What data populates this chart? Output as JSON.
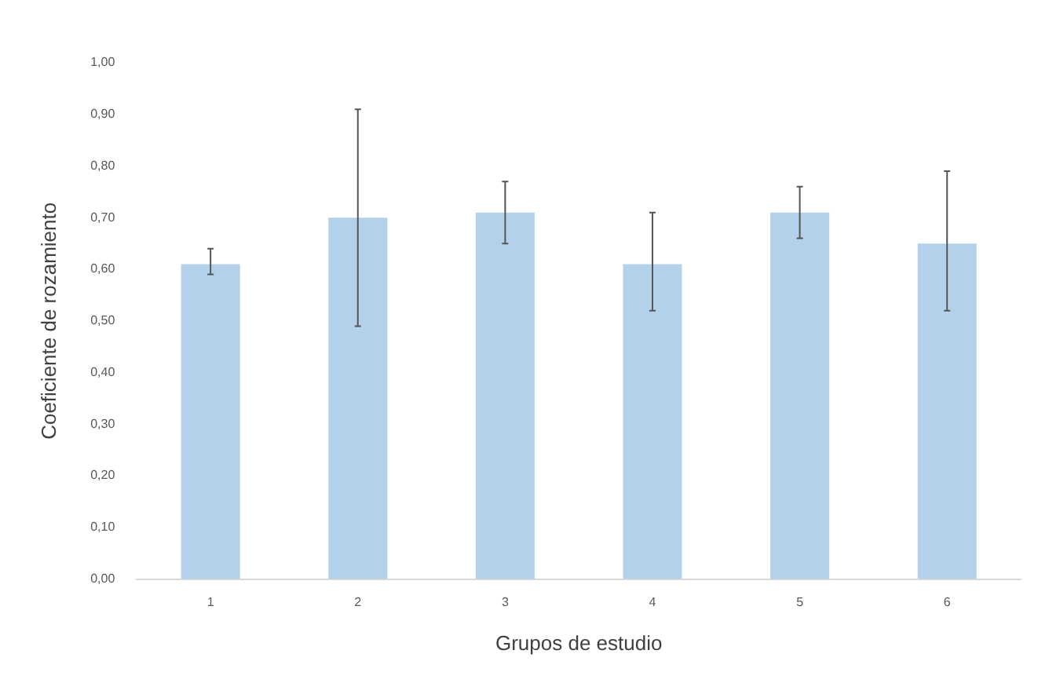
{
  "chart_data": {
    "type": "bar",
    "xlabel": "Grupos de estudio",
    "ylabel": "Coeficiente de rozamiento",
    "categories": [
      "1",
      "2",
      "3",
      "4",
      "5",
      "6"
    ],
    "values": [
      0.61,
      0.7,
      0.71,
      0.61,
      0.71,
      0.65
    ],
    "errors": [
      [
        0.59,
        0.64
      ],
      [
        0.49,
        0.91
      ],
      [
        0.65,
        0.77
      ],
      [
        0.52,
        0.71
      ],
      [
        0.66,
        0.76
      ],
      [
        0.52,
        0.79
      ]
    ],
    "color": "#b3d1ea",
    "ylim": [
      0,
      1
    ],
    "yticks": [
      {
        "value": 0,
        "label": "0,00"
      },
      {
        "value": 0.1,
        "label": "0,10"
      },
      {
        "value": 0.2,
        "label": "0,20"
      },
      {
        "value": 0.3,
        "label": "0,30"
      },
      {
        "value": 0.4,
        "label": "0,40"
      },
      {
        "value": 0.5,
        "label": "0,50"
      },
      {
        "value": 0.6,
        "label": "0,60"
      },
      {
        "value": 0.7,
        "label": "0,70"
      },
      {
        "value": 0.8,
        "label": "0,80"
      },
      {
        "value": 0.9,
        "label": "0,90"
      },
      {
        "value": 1,
        "label": "1,00"
      }
    ],
    "legend": false
  }
}
